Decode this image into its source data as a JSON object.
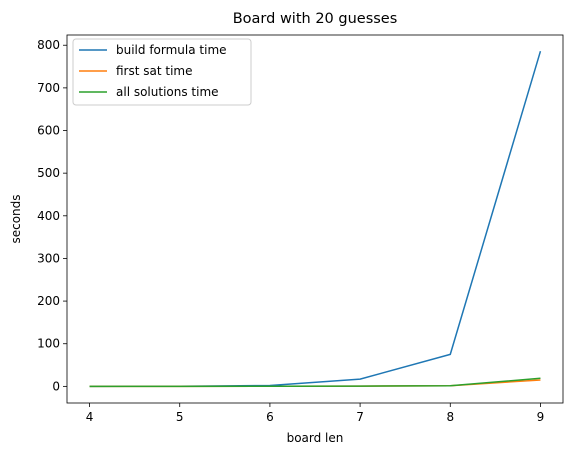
{
  "chart_data": {
    "type": "line",
    "title": "Board with 20 guesses",
    "xlabel": "board len",
    "ylabel": "seconds",
    "x": [
      4,
      5,
      6,
      7,
      8,
      9
    ],
    "xlim": [
      3.75,
      9.25
    ],
    "ylim": [
      -39,
      824
    ],
    "xticks": [
      4,
      5,
      6,
      7,
      8,
      9
    ],
    "yticks": [
      0,
      100,
      200,
      300,
      400,
      500,
      600,
      700,
      800
    ],
    "grid": false,
    "legend_position": "upper-left",
    "series": [
      {
        "name": "build formula time",
        "color": "#1f77b4",
        "values": [
          0.1,
          0.4,
          2,
          17,
          75,
          786
        ]
      },
      {
        "name": "first sat time",
        "color": "#ff7f0e",
        "values": [
          0.05,
          0.1,
          0.3,
          0.6,
          1.5,
          15
        ]
      },
      {
        "name": "all solutions time",
        "color": "#2ca02c",
        "values": [
          0.05,
          0.1,
          0.3,
          0.6,
          1.5,
          19
        ]
      }
    ]
  }
}
